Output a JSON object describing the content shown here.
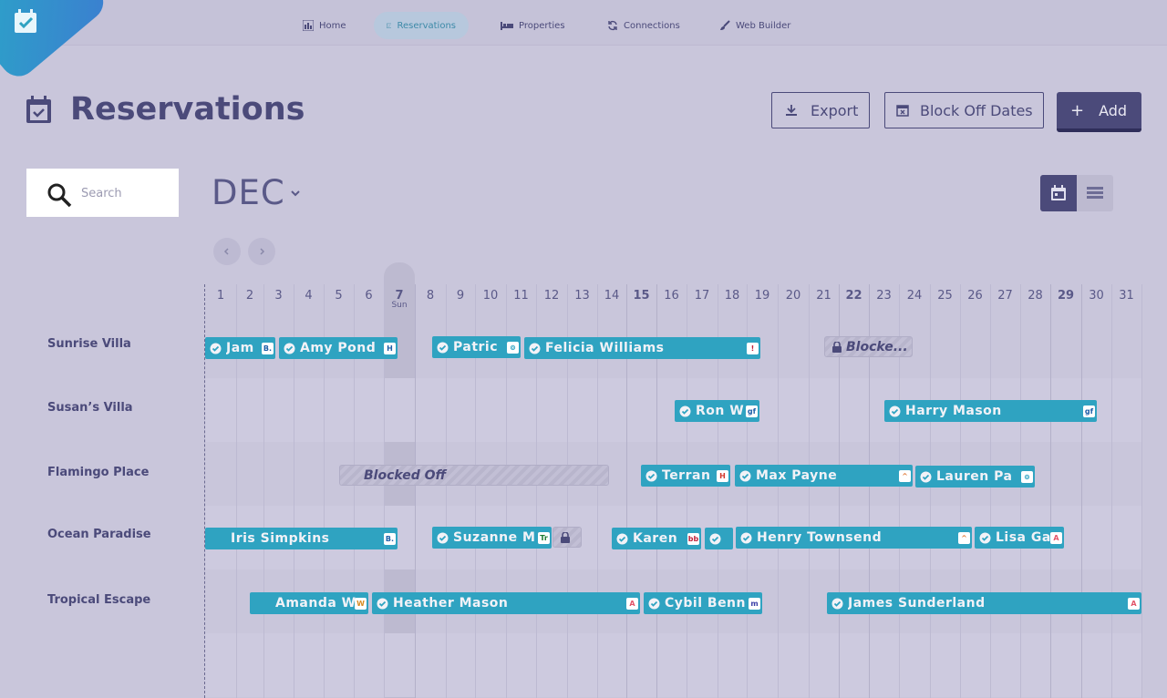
{
  "nav": {
    "items": [
      {
        "label": "Home",
        "icon": "bar-chart-icon"
      },
      {
        "label": "Reservations",
        "icon": "calendar-check-icon",
        "active": true
      },
      {
        "label": "Properties",
        "icon": "bed-icon"
      },
      {
        "label": "Connections",
        "icon": "sync-icon"
      },
      {
        "label": "Web Builder",
        "icon": "brush-icon"
      }
    ]
  },
  "page": {
    "title": "Reservations"
  },
  "actions": {
    "export": "Export",
    "block_off": "Block Off Dates",
    "add": "Add"
  },
  "search": {
    "placeholder": "Search"
  },
  "calendar": {
    "month": "DEC",
    "days": [
      "1",
      "2",
      "3",
      "4",
      "5",
      "6",
      "7",
      "8",
      "9",
      "10",
      "11",
      "12",
      "13",
      "14",
      "15",
      "16",
      "17",
      "18",
      "19",
      "20",
      "21",
      "22",
      "23",
      "24",
      "25",
      "26",
      "27",
      "28",
      "29",
      "30",
      "31"
    ],
    "today_label": "Sun",
    "bold_days": [
      "7",
      "15",
      "22",
      "29"
    ]
  },
  "properties": [
    "Sunrise Villa",
    "Susan’s Villa",
    "Flamingo Place",
    "Ocean Paradise",
    "Tropical Escape"
  ],
  "reservations": [
    {
      "name": "Jam",
      "source": "B.",
      "color": "#2fa3c1"
    },
    {
      "name": "Amy Pond",
      "source": "H"
    },
    {
      "name": "Patric",
      "source": "⊚"
    },
    {
      "name": "Felicia Williams",
      "source": "!"
    },
    {
      "name": "Ron W",
      "source": "gf"
    },
    {
      "name": "Harry Mason",
      "source": "gf"
    },
    {
      "name": "Terran",
      "source": "H"
    },
    {
      "name": "Max Payne",
      "source": "^"
    },
    {
      "name": "Lauren Pa",
      "source": "⊚"
    },
    {
      "name": "Iris Simpkins",
      "source": "B."
    },
    {
      "name": "Suzanne M",
      "source": "Tr"
    },
    {
      "name": "Karen",
      "source": "bb"
    },
    {
      "name": "",
      "source": ""
    },
    {
      "name": "Henry Townsend",
      "source": "^"
    },
    {
      "name": "Lisa Ga",
      "source": "A"
    },
    {
      "name": "Amanda Wo",
      "source": "W"
    },
    {
      "name": "Heather Mason",
      "source": "A"
    },
    {
      "name": "Cybil Benn",
      "source": "m"
    },
    {
      "name": "James Sunderland",
      "source": "A"
    }
  ],
  "blocks": [
    {
      "label": "Blocke..."
    },
    {
      "label": "Blocked Off"
    },
    {
      "label": ""
    }
  ],
  "colors": {
    "accent": "#2fa3c1",
    "primary": "#4b4a7a",
    "background": "#c9c6db"
  }
}
